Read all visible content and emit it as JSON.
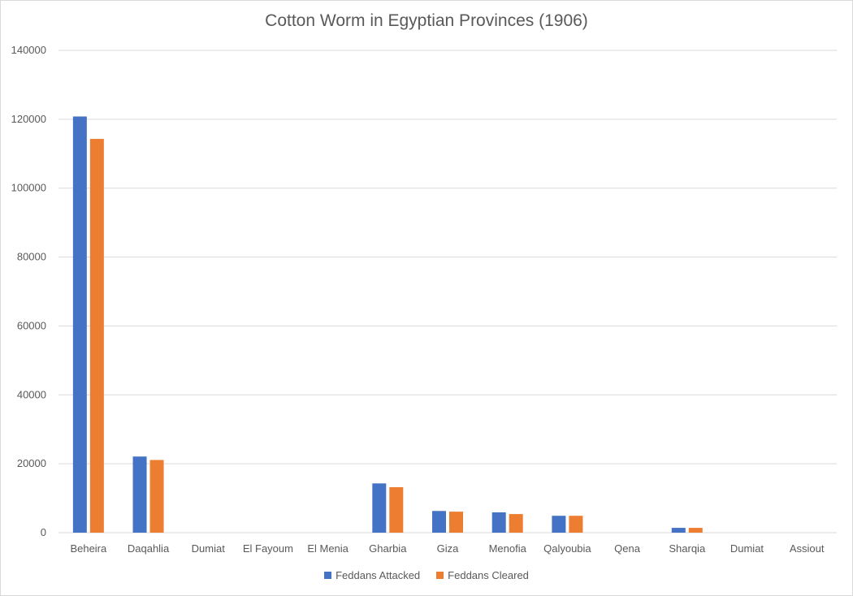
{
  "chart_data": {
    "type": "bar",
    "title": "Cotton Worm in Egyptian Provinces (1906)",
    "categories": [
      "Beheira",
      "Daqahlia",
      "Dumiat",
      "El Fayoum",
      "El Menia",
      "Gharbia",
      "Giza",
      "Menofia",
      "Qalyoubia",
      "Qena",
      "Sharqia",
      "Dumiat",
      "Assiout"
    ],
    "series": [
      {
        "name": "Feddans Attacked",
        "color": "#4472c4",
        "values": [
          120800,
          22100,
          0,
          0,
          0,
          14300,
          6300,
          5900,
          4900,
          0,
          1400,
          0,
          0
        ]
      },
      {
        "name": "Feddans Cleared",
        "color": "#ed7d31",
        "values": [
          114300,
          21100,
          0,
          0,
          0,
          13200,
          6100,
          5400,
          4900,
          0,
          1400,
          0,
          0
        ]
      }
    ],
    "ylim": [
      0,
      140000
    ],
    "yticks": [
      "0",
      "20000",
      "40000",
      "60000",
      "80000",
      "100000",
      "120000",
      "140000"
    ],
    "grid": true,
    "legend_position": "bottom"
  }
}
